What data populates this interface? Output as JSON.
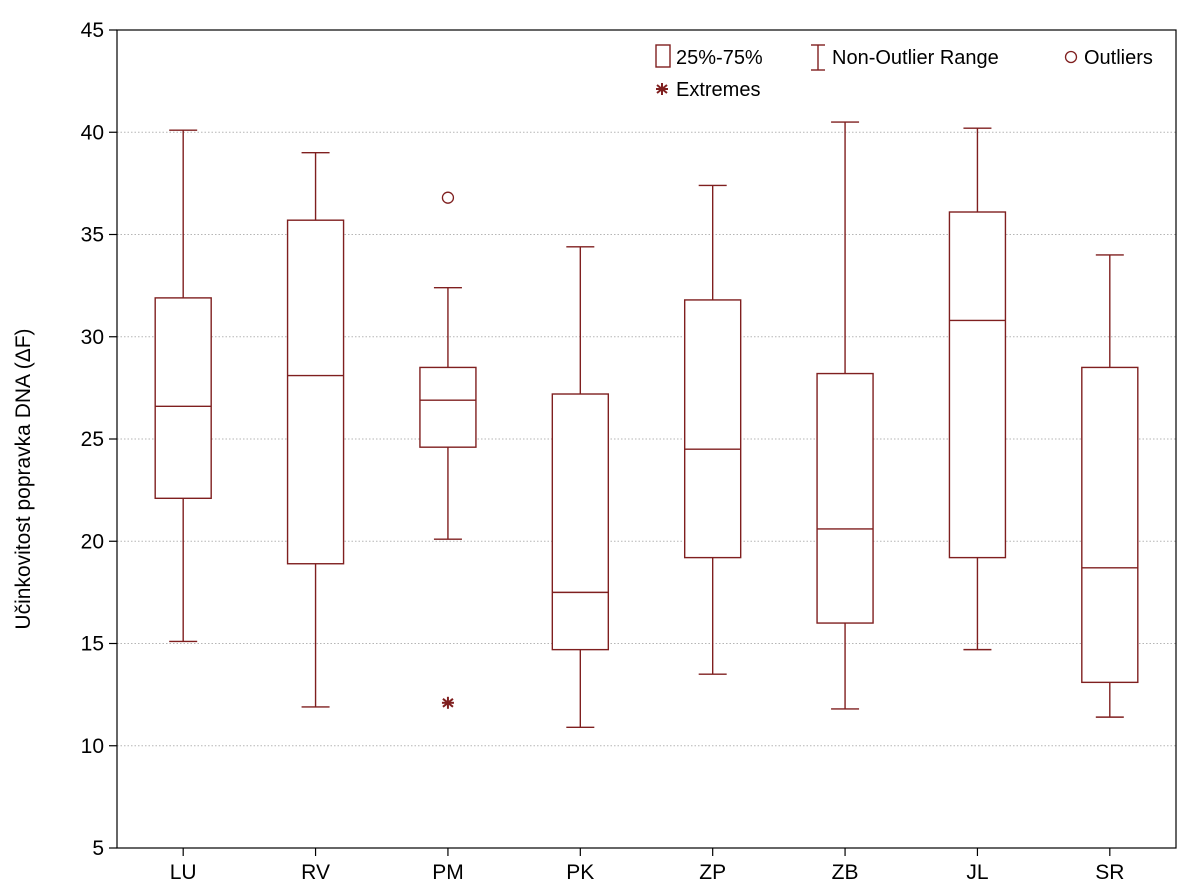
{
  "chart_data": {
    "type": "boxplot",
    "ylabel": "Učinkovitost popravka DNA (ΔF)",
    "ylim": [
      5,
      45
    ],
    "yticks": [
      5,
      10,
      15,
      20,
      25,
      30,
      35,
      40,
      45
    ],
    "grid": true,
    "legend_position": "top-right",
    "legend": {
      "box": "25%-75%",
      "whisker": "Non-Outlier Range",
      "outliers": "Outliers",
      "extremes": "Extremes"
    },
    "color": "#7f1f1f",
    "categories": [
      "LU",
      "RV",
      "PM",
      "PK",
      "ZP",
      "ZB",
      "JL",
      "SR"
    ],
    "boxes": [
      {
        "min": 15.1,
        "q1": 22.1,
        "median": 26.6,
        "q3": 31.9,
        "max": 40.1,
        "outliers": [],
        "extremes": []
      },
      {
        "min": 11.9,
        "q1": 18.9,
        "median": 28.1,
        "q3": 35.7,
        "max": 39.0,
        "outliers": [],
        "extremes": []
      },
      {
        "min": 20.1,
        "q1": 24.6,
        "median": 26.9,
        "q3": 28.5,
        "max": 32.4,
        "outliers": [
          36.8
        ],
        "extremes": [
          12.1
        ]
      },
      {
        "min": 10.9,
        "q1": 14.7,
        "median": 17.5,
        "q3": 27.2,
        "max": 34.4,
        "outliers": [],
        "extremes": []
      },
      {
        "min": 13.5,
        "q1": 19.2,
        "median": 24.5,
        "q3": 31.8,
        "max": 37.4,
        "outliers": [],
        "extremes": []
      },
      {
        "min": 11.8,
        "q1": 16.0,
        "median": 20.6,
        "q3": 28.2,
        "max": 40.5,
        "outliers": [],
        "extremes": []
      },
      {
        "min": 14.7,
        "q1": 19.2,
        "median": 30.8,
        "q3": 36.1,
        "max": 40.2,
        "outliers": [],
        "extremes": []
      },
      {
        "min": 11.4,
        "q1": 13.1,
        "median": 18.7,
        "q3": 28.5,
        "max": 34.0,
        "outliers": [],
        "extremes": []
      }
    ]
  }
}
